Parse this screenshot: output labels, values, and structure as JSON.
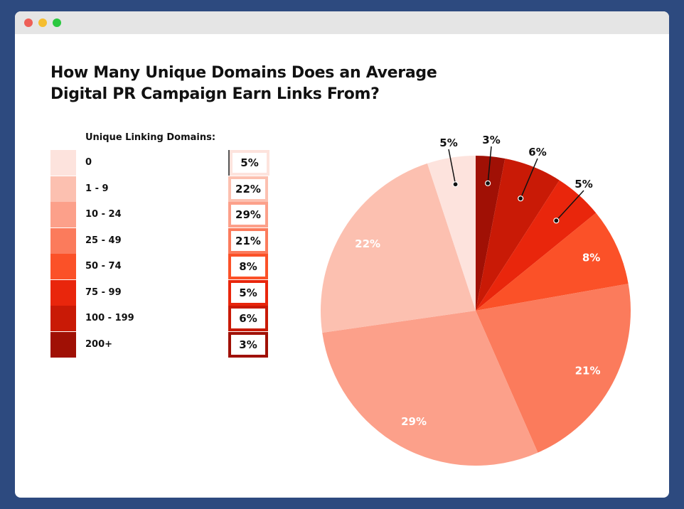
{
  "window": {
    "controls": [
      "close",
      "minimize",
      "maximize"
    ],
    "control_colors": [
      "#ee5f57",
      "#f5bd2f",
      "#2bc840"
    ]
  },
  "chart_data": {
    "type": "pie",
    "title_lines": [
      "How Many Unique Domains Does an Average",
      "Digital PR Campaign Earn Links From?"
    ],
    "legend_title": "Unique Linking Domains:",
    "legend_placement": "left",
    "categories": [
      "0",
      "1 - 9",
      "10 - 24",
      "25 - 49",
      "50 - 74",
      "75 - 99",
      "100 - 199",
      "200+"
    ],
    "values": [
      5,
      22,
      29,
      21,
      8,
      5,
      6,
      3
    ],
    "labels": [
      "5%",
      "22%",
      "29%",
      "21%",
      "8%",
      "5%",
      "6%",
      "3%"
    ],
    "colors": [
      "#fde3dd",
      "#fcc0b0",
      "#fca08a",
      "#fb7b5c",
      "#fb5128",
      "#e9260c",
      "#c91a06",
      "#a01005"
    ],
    "slice_order_clockwise_from_top": [
      "200+",
      "100 - 199",
      "75 - 99",
      "50 - 74",
      "25 - 49",
      "10 - 24",
      "1 - 9",
      "0"
    ]
  }
}
